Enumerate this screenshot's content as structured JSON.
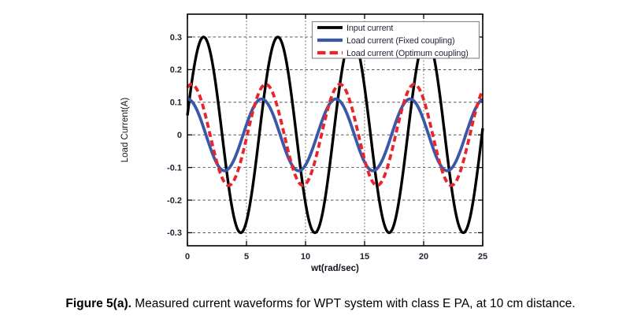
{
  "figure": {
    "caption": {
      "label": "Figure 5(a).",
      "text": "Measured current waveforms for WPT system with class E PA, at 10 cm distance."
    }
  },
  "chart_data": {
    "type": "line",
    "title": "",
    "xlabel": "wt(rad/sec)",
    "ylabel": "Load Current(A)",
    "xlim": [
      0,
      25
    ],
    "ylim": [
      -0.34,
      0.37
    ],
    "x_ticks": [
      0,
      5,
      10,
      15,
      20,
      25
    ],
    "x_tick_labels": [
      "0",
      "5",
      "10",
      "15",
      "20",
      "25"
    ],
    "y_ticks": [
      0.3,
      0.2,
      0.1,
      0,
      -0.1,
      -0.2,
      -0.3
    ],
    "y_tick_labels": [
      "0.3",
      "0.2",
      "0.1",
      "0",
      "-0.1",
      "-0.2",
      "-0.3"
    ],
    "grid": true,
    "legend_position": "top-right",
    "waveform_model": "value = amplitude * sin(omega * x + phase)",
    "sample_step": 0.05,
    "series": [
      {
        "name": "Input current",
        "amplitude": 0.3,
        "omega": 1,
        "phase": 0.2,
        "peak_value": 0.3,
        "trough_value": -0.3,
        "color": "#000000",
        "dash": null,
        "width": 3.4
      },
      {
        "name": "Load current (Fixed coupling)",
        "amplitude": 0.11,
        "omega": 1,
        "phase": 1.5708,
        "peak_value": 0.11,
        "trough_value": -0.11,
        "color": "#3a57a8",
        "dash": null,
        "width": 3.8
      },
      {
        "name": "Load current (Optimum coupling)",
        "amplitude": 0.155,
        "omega": 1,
        "phase": 1.2208,
        "peak_value": 0.155,
        "trough_value": -0.155,
        "color": "#e8252b",
        "dash": "7.5,4.5",
        "width": 3.8
      }
    ],
    "colors": {
      "axis": "#000000",
      "grid": "#3f3f3f",
      "tick_label": "#1d2433",
      "axis_label": "#10131c",
      "legend_border": "#8c8c8c",
      "plot_background": "#ffffff"
    }
  }
}
